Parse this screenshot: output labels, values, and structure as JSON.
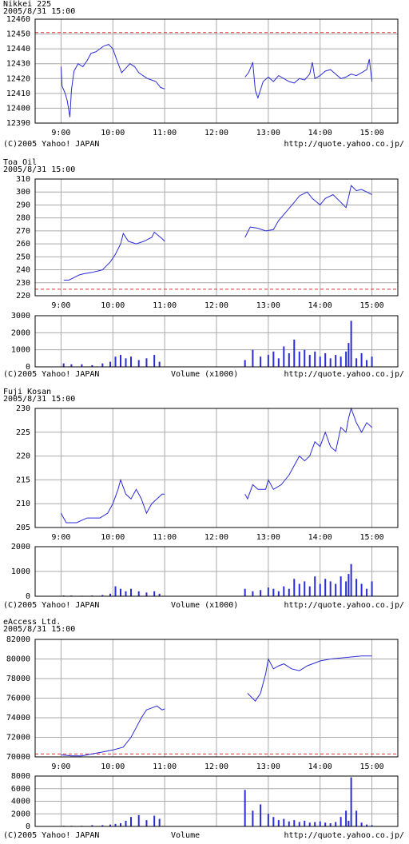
{
  "chart_data": [
    {
      "type": "line",
      "title": "Nikkei 225",
      "subtitle": "2005/8/31 15:00",
      "color": "#2b2bd9",
      "reference_line": 12451,
      "x": [
        9.0,
        9.02,
        9.08,
        9.12,
        9.17,
        9.2,
        9.25,
        9.33,
        9.42,
        9.5,
        9.58,
        9.67,
        9.75,
        9.83,
        9.92,
        10.0,
        10.08,
        10.17,
        10.25,
        10.33,
        10.42,
        10.5,
        10.58,
        10.67,
        10.75,
        10.83,
        10.92,
        11.0,
        11.5,
        12.55,
        12.62,
        12.7,
        12.75,
        12.8,
        12.9,
        13.0,
        13.1,
        13.2,
        13.3,
        13.4,
        13.5,
        13.6,
        13.7,
        13.8,
        13.85,
        13.9,
        14.0,
        14.1,
        14.2,
        14.3,
        14.4,
        14.5,
        14.6,
        14.7,
        14.8,
        14.9,
        14.95,
        15.0
      ],
      "values": [
        12428,
        12415,
        12410,
        12405,
        12394,
        12412,
        12425,
        12430,
        12428,
        12432,
        12437,
        12438,
        12440,
        12442,
        12443,
        12440,
        12432,
        12424,
        12427,
        12430,
        12428,
        12424,
        12422,
        12420,
        12419,
        12418,
        12414,
        12413,
        null,
        12421,
        12424,
        12431,
        12412,
        12407,
        12418,
        12421,
        12418,
        12422,
        12420,
        12418,
        12417,
        12420,
        12419,
        12423,
        12431,
        12420,
        12422,
        12425,
        12426,
        12423,
        12420,
        12421,
        12423,
        12422,
        12424,
        12426,
        12433,
        12418
      ],
      "xlim": [
        8.5,
        15.5
      ],
      "ylim": [
        12390,
        12460
      ],
      "xticks": [
        {
          "value": 9,
          "label": "9:00"
        },
        {
          "value": 10,
          "label": "10:00"
        },
        {
          "value": 11,
          "label": "11:00"
        },
        {
          "value": 12,
          "label": "12:00"
        },
        {
          "value": 13,
          "label": "13:00"
        },
        {
          "value": 14,
          "label": "14:00"
        },
        {
          "value": 15,
          "label": "15:00"
        }
      ],
      "yticks": [
        12390,
        12400,
        12410,
        12420,
        12430,
        12440,
        12450,
        12460
      ],
      "grid": true,
      "source": "(C)2005 Yahoo! JAPAN",
      "url": "http://quote.yahoo.co.jp/"
    },
    {
      "type": "line",
      "title": "Toa  Oil",
      "subtitle": "2005/8/31 15:00",
      "color": "#2b2bd9",
      "reference_line": 225,
      "x": [
        9.05,
        9.15,
        9.25,
        9.35,
        9.45,
        9.6,
        9.8,
        9.95,
        10.05,
        10.15,
        10.2,
        10.3,
        10.45,
        10.6,
        10.75,
        10.8,
        10.95,
        11.0,
        11.5,
        12.55,
        12.65,
        12.8,
        12.95,
        13.1,
        13.2,
        13.35,
        13.5,
        13.6,
        13.75,
        13.85,
        14.0,
        14.1,
        14.25,
        14.4,
        14.5,
        14.55,
        14.6,
        14.7,
        14.8,
        14.9,
        15.0
      ],
      "values": [
        232,
        232,
        234,
        236,
        237,
        238,
        240,
        246,
        252,
        260,
        268,
        262,
        260,
        262,
        265,
        269,
        264,
        262,
        null,
        265,
        273,
        272,
        270,
        271,
        278,
        285,
        292,
        297,
        300,
        295,
        290,
        295,
        298,
        292,
        288,
        296,
        305,
        301,
        302,
        300,
        298
      ],
      "xlim": [
        8.5,
        15.5
      ],
      "ylim": [
        220,
        310
      ],
      "xticks": [
        {
          "value": 9,
          "label": "9:00"
        },
        {
          "value": 10,
          "label": "10:00"
        },
        {
          "value": 11,
          "label": "11:00"
        },
        {
          "value": 12,
          "label": "12:00"
        },
        {
          "value": 13,
          "label": "13:00"
        },
        {
          "value": 14,
          "label": "14:00"
        },
        {
          "value": 15,
          "label": "15:00"
        }
      ],
      "yticks": [
        220,
        230,
        240,
        250,
        260,
        270,
        280,
        290,
        300,
        310
      ],
      "grid": true
    },
    {
      "type": "bar",
      "color": "#2b2bd9",
      "xlabel": "Volume (x1000)",
      "source": "(C)2005 Yahoo! JAPAN",
      "url": "http://quote.yahoo.co.jp/",
      "x": [
        9.05,
        9.2,
        9.4,
        9.6,
        9.8,
        9.95,
        10.05,
        10.15,
        10.25,
        10.35,
        10.5,
        10.65,
        10.8,
        10.9,
        12.55,
        12.7,
        12.85,
        13.0,
        13.1,
        13.2,
        13.3,
        13.4,
        13.5,
        13.6,
        13.7,
        13.8,
        13.9,
        14.0,
        14.1,
        14.2,
        14.3,
        14.4,
        14.5,
        14.55,
        14.6,
        14.7,
        14.8,
        14.9,
        15.0
      ],
      "values": [
        200,
        150,
        150,
        100,
        200,
        300,
        600,
        700,
        500,
        600,
        400,
        500,
        700,
        300,
        400,
        1000,
        600,
        700,
        900,
        500,
        1200,
        800,
        1600,
        900,
        1000,
        700,
        900,
        600,
        800,
        500,
        700,
        600,
        900,
        1400,
        2700,
        500,
        800,
        400,
        600
      ],
      "xlim": [
        8.5,
        15.5
      ],
      "ylim": [
        0,
        3000
      ],
      "yticks": [
        0,
        1000,
        2000,
        3000
      ],
      "grid": true
    },
    {
      "type": "line",
      "title": "Fuji  Kosan",
      "subtitle": "2005/8/31 15:00",
      "color": "#2b2bd9",
      "reference_line": 205,
      "x": [
        9.0,
        9.05,
        9.1,
        9.3,
        9.5,
        9.75,
        9.9,
        10.0,
        10.1,
        10.15,
        10.25,
        10.35,
        10.45,
        10.55,
        10.65,
        10.75,
        10.85,
        10.95,
        11.0,
        11.5,
        12.55,
        12.6,
        12.7,
        12.8,
        12.95,
        13.0,
        13.1,
        13.25,
        13.4,
        13.5,
        13.6,
        13.7,
        13.8,
        13.9,
        14.0,
        14.1,
        14.2,
        14.3,
        14.4,
        14.5,
        14.55,
        14.6,
        14.7,
        14.8,
        14.9,
        15.0
      ],
      "values": [
        208,
        207,
        206,
        206,
        207,
        207,
        208,
        210,
        213,
        215,
        212,
        211,
        213,
        211,
        208,
        210,
        211,
        212,
        212,
        null,
        212,
        211,
        214,
        213,
        213,
        215,
        213,
        214,
        216,
        218,
        220,
        219,
        220,
        223,
        222,
        225,
        222,
        221,
        226,
        225,
        228,
        230,
        227,
        225,
        227,
        226
      ],
      "xlim": [
        8.5,
        15.5
      ],
      "ylim": [
        205,
        230
      ],
      "xticks": [
        {
          "value": 9,
          "label": "9:00"
        },
        {
          "value": 10,
          "label": "10:00"
        },
        {
          "value": 11,
          "label": "11:00"
        },
        {
          "value": 12,
          "label": "12:00"
        },
        {
          "value": 13,
          "label": "13:00"
        },
        {
          "value": 14,
          "label": "14:00"
        },
        {
          "value": 15,
          "label": "15:00"
        }
      ],
      "yticks": [
        205,
        210,
        215,
        220,
        225,
        230
      ],
      "grid": true
    },
    {
      "type": "bar",
      "color": "#2b2bd9",
      "xlabel": "Volume (x1000)",
      "source": "(C)2005 Yahoo! JAPAN",
      "url": "http://quote.yahoo.co.jp/",
      "x": [
        9.05,
        9.2,
        9.4,
        9.6,
        9.8,
        9.95,
        10.05,
        10.15,
        10.25,
        10.35,
        10.5,
        10.65,
        10.8,
        10.9,
        12.55,
        12.7,
        12.85,
        13.0,
        13.1,
        13.2,
        13.3,
        13.4,
        13.5,
        13.6,
        13.7,
        13.8,
        13.9,
        14.0,
        14.1,
        14.2,
        14.3,
        14.4,
        14.5,
        14.55,
        14.6,
        14.7,
        14.8,
        14.9,
        15.0
      ],
      "values": [
        30,
        30,
        20,
        30,
        50,
        100,
        400,
        300,
        200,
        300,
        200,
        150,
        200,
        100,
        300,
        200,
        250,
        350,
        300,
        200,
        400,
        300,
        700,
        500,
        600,
        400,
        800,
        500,
        700,
        600,
        500,
        800,
        600,
        900,
        1300,
        700,
        500,
        300,
        600
      ],
      "xlim": [
        8.5,
        15.5
      ],
      "ylim": [
        0,
        2000
      ],
      "yticks": [
        0,
        1000,
        2000
      ],
      "grid": true
    },
    {
      "type": "line",
      "title": "eAccess  Ltd.",
      "subtitle": "2005/8/31 15:00",
      "color": "#2b2bd9",
      "reference_line": 70300,
      "x": [
        9.0,
        9.2,
        9.4,
        9.6,
        9.8,
        10.0,
        10.2,
        10.35,
        10.45,
        10.55,
        10.65,
        10.75,
        10.85,
        10.95,
        11.0,
        11.5,
        12.6,
        12.75,
        12.85,
        12.95,
        13.0,
        13.1,
        13.2,
        13.3,
        13.45,
        13.6,
        13.75,
        14.0,
        14.2,
        14.4,
        14.6,
        14.8,
        15.0
      ],
      "values": [
        70200,
        70100,
        70100,
        70300,
        70500,
        70700,
        71000,
        72000,
        73000,
        74000,
        74800,
        75000,
        75200,
        74800,
        74900,
        null,
        76500,
        75700,
        76500,
        78500,
        80000,
        79000,
        79300,
        79500,
        79000,
        78800,
        79300,
        79800,
        80000,
        80100,
        80200,
        80300,
        80300
      ],
      "xlim": [
        8.5,
        15.5
      ],
      "ylim": [
        70000,
        82000
      ],
      "xticks": [
        {
          "value": 9,
          "label": "9:00"
        },
        {
          "value": 10,
          "label": "10:00"
        },
        {
          "value": 11,
          "label": "11:00"
        },
        {
          "value": 12,
          "label": "12:00"
        },
        {
          "value": 13,
          "label": "13:00"
        },
        {
          "value": 14,
          "label": "14:00"
        },
        {
          "value": 15,
          "label": "15:00"
        }
      ],
      "yticks": [
        70000,
        72000,
        74000,
        76000,
        78000,
        80000,
        82000
      ],
      "grid": true
    },
    {
      "type": "bar",
      "color": "#2b2bd9",
      "xlabel": "Volume",
      "source": "(C)2005 Yahoo! JAPAN",
      "url": "http://quote.yahoo.co.jp/",
      "x": [
        9.05,
        9.2,
        9.4,
        9.6,
        9.8,
        9.95,
        10.05,
        10.15,
        10.25,
        10.35,
        10.5,
        10.65,
        10.8,
        10.9,
        12.55,
        12.7,
        12.85,
        13.0,
        13.1,
        13.2,
        13.3,
        13.4,
        13.5,
        13.6,
        13.7,
        13.8,
        13.9,
        14.0,
        14.1,
        14.2,
        14.3,
        14.4,
        14.5,
        14.55,
        14.6,
        14.7,
        14.8,
        14.9,
        15.0
      ],
      "values": [
        100,
        100,
        100,
        200,
        200,
        300,
        400,
        500,
        900,
        1500,
        1800,
        1000,
        1700,
        1200,
        5800,
        2500,
        3500,
        2000,
        1500,
        1000,
        1200,
        800,
        1000,
        700,
        900,
        600,
        700,
        800,
        600,
        500,
        700,
        1500,
        2500,
        900,
        7800,
        2500,
        600,
        300,
        200
      ],
      "xlim": [
        8.5,
        15.5
      ],
      "ylim": [
        0,
        8000
      ],
      "yticks": [
        0,
        2000,
        4000,
        6000,
        8000
      ],
      "grid": true
    }
  ]
}
